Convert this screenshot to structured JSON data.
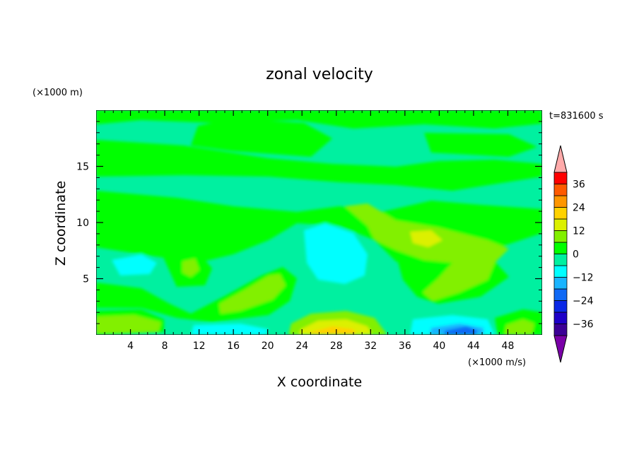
{
  "chart_data": {
    "type": "heatmap",
    "title": "zonal velocity",
    "time_label": "t=831600 s",
    "xlabel": "X coordinate",
    "ylabel": "Z coordinate",
    "x_unit_label": "(×1000 m/s)",
    "y_unit_label": "(×1000 m)",
    "xlim": [
      0,
      52
    ],
    "ylim": [
      0,
      20
    ],
    "x_ticks": [
      4,
      8,
      12,
      16,
      20,
      24,
      28,
      32,
      36,
      40,
      44,
      48
    ],
    "y_ticks": [
      5,
      10,
      15
    ],
    "colorbar": {
      "levels": [
        -42,
        -36,
        -30,
        -24,
        -18,
        -12,
        -6,
        0,
        6,
        12,
        18,
        24,
        30,
        36,
        42
      ],
      "tick_values": [
        -36,
        -24,
        -12,
        0,
        12,
        24,
        36
      ],
      "colors": [
        "#7a00a8",
        "#3c0096",
        "#1e00c8",
        "#0a28e6",
        "#0f69f5",
        "#19b4ff",
        "#00ffff",
        "#00f0a0",
        "#00ff00",
        "#82f000",
        "#dcf000",
        "#ffd200",
        "#ff9600",
        "#ff5a00",
        "#ff0000",
        "#ffaaaa"
      ],
      "extend": "both"
    },
    "field_description_levels": {
      "background": 0,
      "notes": ""
    }
  }
}
